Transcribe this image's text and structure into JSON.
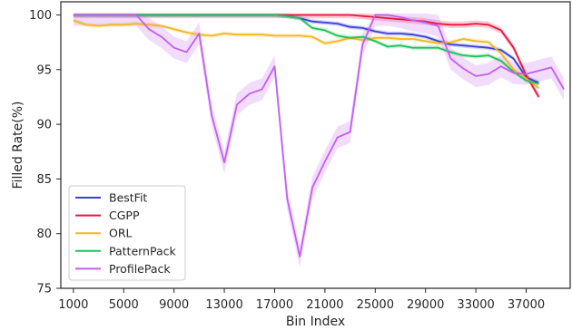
{
  "chart_data": {
    "type": "line",
    "title": "",
    "xlabel": "Bin Index",
    "ylabel": "Filled Rate(%)",
    "xlim": [
      0,
      40500
    ],
    "ylim": [
      75,
      101.2
    ],
    "xticks": [
      1000,
      5000,
      9000,
      13000,
      17000,
      21000,
      25000,
      29000,
      33000,
      37000
    ],
    "yticks": [
      75,
      80,
      85,
      90,
      95,
      100
    ],
    "grid": false,
    "legend_position": "lower-left",
    "series": [
      {
        "name": "BestFit",
        "color": "#3b3fd9",
        "band": 0.2,
        "x": [
          1000,
          3000,
          5000,
          7000,
          9000,
          11000,
          13000,
          15000,
          17000,
          18000,
          19000,
          20000,
          21000,
          22000,
          23000,
          24000,
          25000,
          26000,
          27000,
          28000,
          29000,
          30000,
          31000,
          32000,
          33000,
          34000,
          35000,
          36000,
          37000,
          38000
        ],
        "y": [
          100,
          100,
          100,
          100,
          100,
          100,
          100,
          100,
          100,
          99.9,
          99.7,
          99.4,
          99.3,
          99.2,
          98.9,
          98.8,
          98.5,
          98.3,
          98.3,
          98.2,
          98.0,
          97.6,
          97.3,
          97.2,
          97.1,
          97.0,
          96.8,
          96.0,
          94.3,
          93.8
        ]
      },
      {
        "name": "CGPP",
        "color": "#e8143c",
        "band": 0.3,
        "x": [
          1000,
          3000,
          5000,
          7000,
          9000,
          11000,
          13000,
          15000,
          17000,
          19000,
          21000,
          23000,
          24000,
          25000,
          26000,
          27000,
          28000,
          29000,
          30000,
          31000,
          32000,
          33000,
          34000,
          35000,
          36000,
          37000,
          38000
        ],
        "y": [
          100,
          100,
          100,
          100,
          100,
          100,
          100,
          100,
          100,
          100,
          100,
          100,
          99.9,
          99.8,
          99.7,
          99.6,
          99.5,
          99.4,
          99.2,
          99.1,
          99.1,
          99.2,
          99.1,
          98.6,
          97.0,
          94.5,
          92.5
        ]
      },
      {
        "name": "ORL",
        "color": "#f2b81d",
        "band": 0.2,
        "x": [
          1000,
          2000,
          3000,
          4000,
          5000,
          6000,
          7000,
          8000,
          9000,
          10000,
          11000,
          12000,
          13000,
          14000,
          15000,
          16000,
          17000,
          18000,
          19000,
          20000,
          21000,
          22000,
          23000,
          24000,
          25000,
          26000,
          27000,
          28000,
          29000,
          30000,
          31000,
          32000,
          33000,
          34000,
          35000,
          36000,
          37000,
          38000
        ],
        "y": [
          99.5,
          99.1,
          99.0,
          99.1,
          99.1,
          99.2,
          99.1,
          99.0,
          98.7,
          98.4,
          98.2,
          98.1,
          98.3,
          98.2,
          98.2,
          98.2,
          98.1,
          98.1,
          98.1,
          98.0,
          97.4,
          97.6,
          97.9,
          97.7,
          97.9,
          97.9,
          97.8,
          97.8,
          97.6,
          97.4,
          97.5,
          97.8,
          97.6,
          97.5,
          96.5,
          95.0,
          94.2,
          93.3
        ]
      },
      {
        "name": "PatternPack",
        "color": "#1fc25a",
        "band": 0.2,
        "x": [
          1000,
          3000,
          5000,
          7000,
          9000,
          11000,
          13000,
          15000,
          17000,
          18000,
          19000,
          20000,
          21000,
          22000,
          23000,
          24000,
          25000,
          26000,
          27000,
          28000,
          29000,
          30000,
          31000,
          32000,
          33000,
          34000,
          35000,
          36000,
          37000,
          38000
        ],
        "y": [
          100,
          100,
          100,
          100,
          100,
          100,
          100,
          100,
          100,
          99.9,
          99.7,
          98.8,
          98.6,
          98.1,
          97.9,
          98.0,
          97.6,
          97.1,
          97.2,
          97.0,
          97.0,
          97.0,
          96.6,
          96.3,
          96.2,
          96.3,
          95.8,
          94.8,
          94.0,
          93.7
        ]
      },
      {
        "name": "ProfilePack",
        "color": "#c35ef0",
        "band": 1.0,
        "x": [
          1000,
          2000,
          3000,
          4000,
          5000,
          6000,
          7000,
          8000,
          9000,
          10000,
          11000,
          12000,
          13000,
          14000,
          15000,
          16000,
          17000,
          18000,
          19000,
          20000,
          21000,
          22000,
          23000,
          24000,
          25000,
          26000,
          27000,
          28000,
          29000,
          30000,
          31000,
          32000,
          33000,
          34000,
          35000,
          36000,
          37000,
          38000,
          39000,
          40000
        ],
        "y": [
          100,
          100,
          100,
          100,
          100,
          100,
          98.7,
          98.0,
          97.0,
          96.6,
          98.3,
          90.8,
          86.5,
          91.8,
          92.8,
          93.2,
          95.3,
          83.2,
          77.9,
          84.2,
          86.6,
          88.8,
          89.3,
          97.3,
          100,
          100,
          99.8,
          99.5,
          99.3,
          99.0,
          96.0,
          95.1,
          94.4,
          94.6,
          95.3,
          94.7,
          94.6,
          94.9,
          95.2,
          93.2
        ]
      }
    ]
  }
}
